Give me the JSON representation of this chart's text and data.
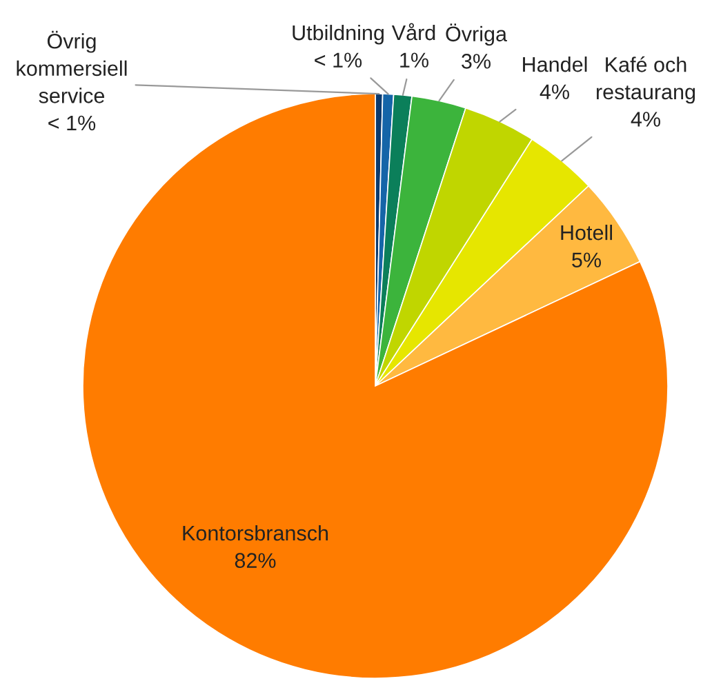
{
  "chart_data": {
    "type": "pie",
    "categories": [
      "Övrig\nkommersiell\nservice",
      "Utbildning",
      "Vård",
      "Övriga",
      "Handel",
      "Kafé och\nrestaurang",
      "Hotell",
      "Kontorsbransch"
    ],
    "values": [
      0.4,
      0.6,
      1,
      3,
      4,
      4,
      5,
      82
    ],
    "value_labels": [
      "< 1%",
      "< 1%",
      "1%",
      "3%",
      "4%",
      "4%",
      "5%",
      "82%"
    ],
    "colors": [
      "#0b3a6e",
      "#1565a8",
      "#0b7f5a",
      "#3cb43c",
      "#c0d600",
      "#e6e600",
      "#ffb940",
      "#ff7c00"
    ]
  }
}
